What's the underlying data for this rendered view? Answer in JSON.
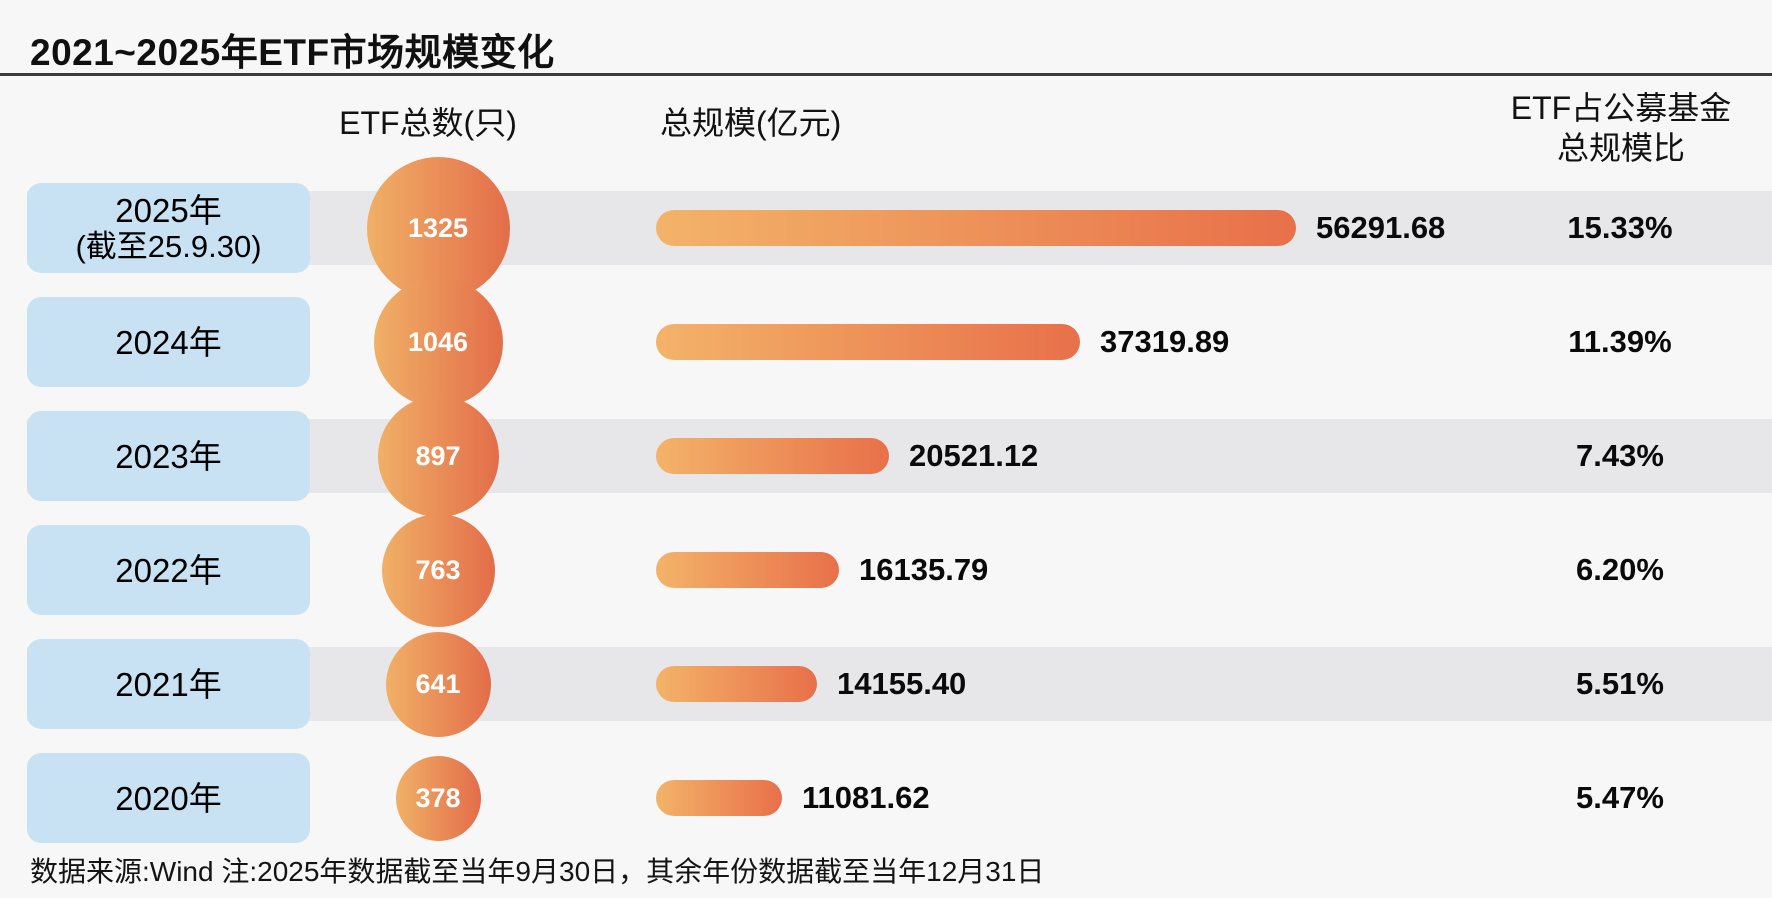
{
  "title": "2021~2025年ETF市场规模变化",
  "headers": {
    "count_col": "ETF总数(只)",
    "scale_col": "总规模(亿元)",
    "ratio_col_line1": "ETF占公募基金",
    "ratio_col_line2": "总规模比"
  },
  "rows": [
    {
      "year_label": "2025年",
      "year_sub": "(截至25.9.30)",
      "etf_count": "1325",
      "total_scale": "56291.68",
      "percent": "15.33%",
      "band": true
    },
    {
      "year_label": "2024年",
      "year_sub": "",
      "etf_count": "1046",
      "total_scale": "37319.89",
      "percent": "11.39%",
      "band": false
    },
    {
      "year_label": "2023年",
      "year_sub": "",
      "etf_count": "897",
      "total_scale": "20521.12",
      "percent": "7.43%",
      "band": true
    },
    {
      "year_label": "2022年",
      "year_sub": "",
      "etf_count": "763",
      "total_scale": "16135.79",
      "percent": "6.20%",
      "band": false
    },
    {
      "year_label": "2021年",
      "year_sub": "",
      "etf_count": "641",
      "total_scale": "14155.40",
      "percent": "5.51%",
      "band": true
    },
    {
      "year_label": "2020年",
      "year_sub": "",
      "etf_count": "378",
      "total_scale": "11081.62",
      "percent": "5.47%",
      "band": false
    }
  ],
  "footer_note": "数据来源:Wind  注:2025年数据截至当年9月30日，其余年份数据截至当年12月31日",
  "colors": {
    "background": "#f7f7f8",
    "row_band": "#e7e7e9",
    "year_box": "#c9e2f3",
    "gradient_start": "#f0b067",
    "gradient_end": "#e36d49",
    "text": "#0a0a0a"
  },
  "chart_data": {
    "type": "bar",
    "title": "2021~2025年ETF市场规模变化",
    "categories": [
      "2025年(截至25.9.30)",
      "2024年",
      "2023年",
      "2022年",
      "2021年",
      "2020年"
    ],
    "series": [
      {
        "name": "ETF总数(只)",
        "values": [
          1325,
          1046,
          897,
          763,
          641,
          378
        ]
      },
      {
        "name": "总规模(亿元)",
        "values": [
          56291.68,
          37319.89,
          20521.12,
          16135.79,
          14155.4,
          11081.62
        ]
      },
      {
        "name": "ETF占公募基金总规模比(%)",
        "values": [
          15.33,
          11.39,
          7.43,
          6.2,
          5.51,
          5.47
        ]
      }
    ],
    "xlabel": "",
    "ylabel": "",
    "xlim": [
      0,
      56291.68
    ],
    "grid": false,
    "legend_position": "none",
    "orientation": "horizontal",
    "note": "数据来源:Wind  注:2025年数据截至当年9月30日，其余年份数据截至当年12月31日"
  }
}
